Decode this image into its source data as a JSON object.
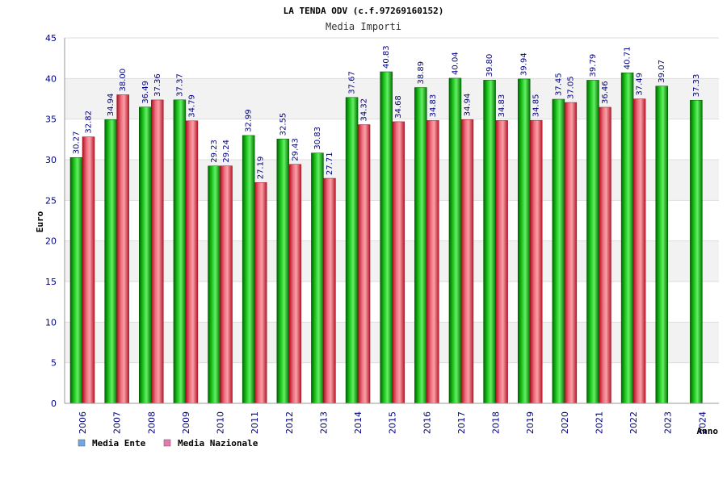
{
  "chart_data": {
    "type": "bar",
    "title": "LA TENDA ODV (c.f.97269160152)",
    "subtitle": "Media Importi",
    "xlabel": "Anno",
    "ylabel": "Euro",
    "ylim": [
      0,
      45
    ],
    "yticks": [
      0,
      5,
      10,
      15,
      20,
      25,
      30,
      35,
      40,
      45
    ],
    "categories": [
      "2006",
      "2007",
      "2008",
      "2009",
      "2010",
      "2011",
      "2012",
      "2013",
      "2014",
      "2015",
      "2016",
      "2017",
      "2018",
      "2019",
      "2020",
      "2021",
      "2022",
      "2023",
      "2024"
    ],
    "series": [
      {
        "name": "Media Ente",
        "color": "#00aa00",
        "legend_color": "#6ea6e6",
        "values": [
          30.27,
          34.94,
          36.49,
          37.37,
          29.23,
          32.99,
          32.55,
          30.83,
          37.67,
          40.83,
          38.89,
          40.04,
          39.8,
          39.94,
          37.45,
          39.79,
          40.71,
          39.07,
          37.33
        ],
        "labels": [
          "30.27",
          "34.94",
          "36.49",
          "37.37",
          "29.23",
          "32.99",
          "32.55",
          "30.83",
          "37.67",
          "40.83",
          "38.89",
          "40.04",
          "39.80",
          "39.94",
          "37.45",
          "39.79",
          "40.71",
          "39.07",
          "37.33"
        ]
      },
      {
        "name": "Media Nazionale",
        "color": "#e8303a",
        "legend_color": "#e67ab0",
        "values": [
          32.82,
          38.0,
          37.36,
          34.79,
          29.24,
          27.19,
          29.43,
          27.71,
          34.32,
          34.68,
          34.83,
          34.94,
          34.83,
          34.85,
          37.05,
          36.46,
          37.49,
          null,
          null
        ],
        "labels": [
          "32.82",
          "38.00",
          "37.36",
          "34.79",
          "29.24",
          "27.19",
          "29.43",
          "27.71",
          "34.32",
          "34.68",
          "34.83",
          "34.94",
          "34.83",
          "34.85",
          "37.05",
          "36.46",
          "37.49",
          null,
          null
        ]
      }
    ],
    "grid": true,
    "legend_position": "bottom-left"
  }
}
